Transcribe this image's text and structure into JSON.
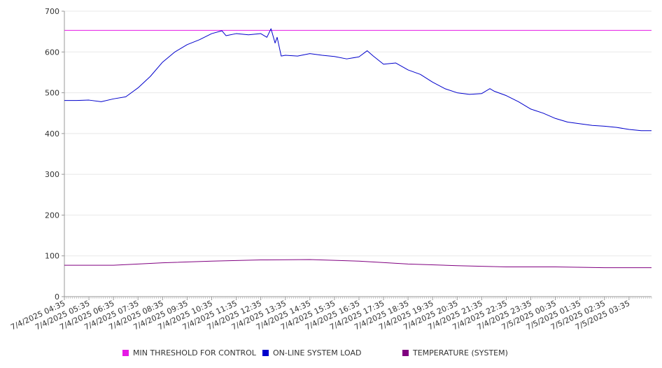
{
  "chart_data": {
    "type": "line",
    "title": "",
    "xlabel": "",
    "ylabel": "",
    "ylim": [
      0,
      700
    ],
    "yticks": [
      0,
      100,
      200,
      300,
      400,
      500,
      600,
      700
    ],
    "x_tick_labels": [
      "7/4/2025 04:35",
      "7/4/2025 05:35",
      "7/4/2025 06:35",
      "7/4/2025 07:35",
      "7/4/2025 08:35",
      "7/4/2025 09:35",
      "7/4/2025 10:35",
      "7/4/2025 11:35",
      "7/4/2025 12:35",
      "7/4/2025 13:35",
      "7/4/2025 14:35",
      "7/4/2025 15:35",
      "7/4/2025 16:35",
      "7/4/2025 17:35",
      "7/4/2025 18:35",
      "7/4/2025 19:35",
      "7/4/2025 20:35",
      "7/4/2025 21:35",
      "7/4/2025 22:35",
      "7/4/2025 23:35",
      "7/5/2025 00:35",
      "7/5/2025 01:35",
      "7/5/2025 02:35",
      "7/5/2025 03:35"
    ],
    "grid": true,
    "legend_position": "bottom",
    "series": [
      {
        "name": "MIN THRESHOLD FOR CONTROL",
        "color": "#e619e6",
        "x": [
          "7/4/2025 04:35",
          "7/5/2025 04:30"
        ],
        "values": [
          653,
          653
        ]
      },
      {
        "name": "ON-LINE SYSTEM LOAD",
        "color": "#0000cc",
        "x": [
          "7/4/2025 04:35",
          "7/4/2025 05:05",
          "7/4/2025 05:35",
          "7/4/2025 06:05",
          "7/4/2025 06:35",
          "7/4/2025 07:05",
          "7/4/2025 07:35",
          "7/4/2025 08:05",
          "7/4/2025 08:35",
          "7/4/2025 09:05",
          "7/4/2025 09:35",
          "7/4/2025 10:05",
          "7/4/2025 10:35",
          "7/4/2025 11:00",
          "7/4/2025 11:10",
          "7/4/2025 11:35",
          "7/4/2025 12:05",
          "7/4/2025 12:35",
          "7/4/2025 12:50",
          "7/4/2025 13:00",
          "7/4/2025 13:10",
          "7/4/2025 13:15",
          "7/4/2025 13:25",
          "7/4/2025 13:35",
          "7/4/2025 14:05",
          "7/4/2025 14:35",
          "7/4/2025 15:05",
          "7/4/2025 15:35",
          "7/4/2025 16:05",
          "7/4/2025 16:35",
          "7/4/2025 16:55",
          "7/4/2025 17:10",
          "7/4/2025 17:35",
          "7/4/2025 18:05",
          "7/4/2025 18:35",
          "7/4/2025 19:05",
          "7/4/2025 19:35",
          "7/4/2025 20:05",
          "7/4/2025 20:35",
          "7/4/2025 21:05",
          "7/4/2025 21:35",
          "7/4/2025 21:55",
          "7/4/2025 22:05",
          "7/4/2025 22:35",
          "7/4/2025 23:05",
          "7/4/2025 23:35",
          "7/5/2025 00:05",
          "7/5/2025 00:35",
          "7/5/2025 01:05",
          "7/5/2025 01:35",
          "7/5/2025 02:05",
          "7/5/2025 02:35",
          "7/5/2025 03:05",
          "7/5/2025 03:35",
          "7/5/2025 04:05",
          "7/5/2025 04:30"
        ],
        "values": [
          481,
          481,
          482,
          478,
          485,
          490,
          512,
          540,
          575,
          600,
          618,
          630,
          645,
          652,
          640,
          645,
          642,
          645,
          636,
          657,
          622,
          636,
          590,
          592,
          590,
          596,
          592,
          589,
          583,
          588,
          603,
          590,
          570,
          573,
          556,
          545,
          526,
          510,
          500,
          496,
          498,
          510,
          504,
          493,
          478,
          460,
          450,
          437,
          428,
          424,
          420,
          418,
          415,
          410,
          407,
          407
        ]
      },
      {
        "name": "TEMPERATURE (SYSTEM)",
        "color": "#800080",
        "x": [
          "7/4/2025 04:35",
          "7/4/2025 06:35",
          "7/4/2025 08:35",
          "7/4/2025 10:35",
          "7/4/2025 12:35",
          "7/4/2025 14:35",
          "7/4/2025 16:35",
          "7/4/2025 18:35",
          "7/4/2025 20:35",
          "7/4/2025 22:35",
          "7/5/2025 00:35",
          "7/5/2025 02:35",
          "7/5/2025 04:30"
        ],
        "values": [
          77,
          77,
          83,
          87,
          90,
          91,
          87,
          80,
          76,
          73,
          73,
          71,
          71
        ]
      }
    ]
  }
}
